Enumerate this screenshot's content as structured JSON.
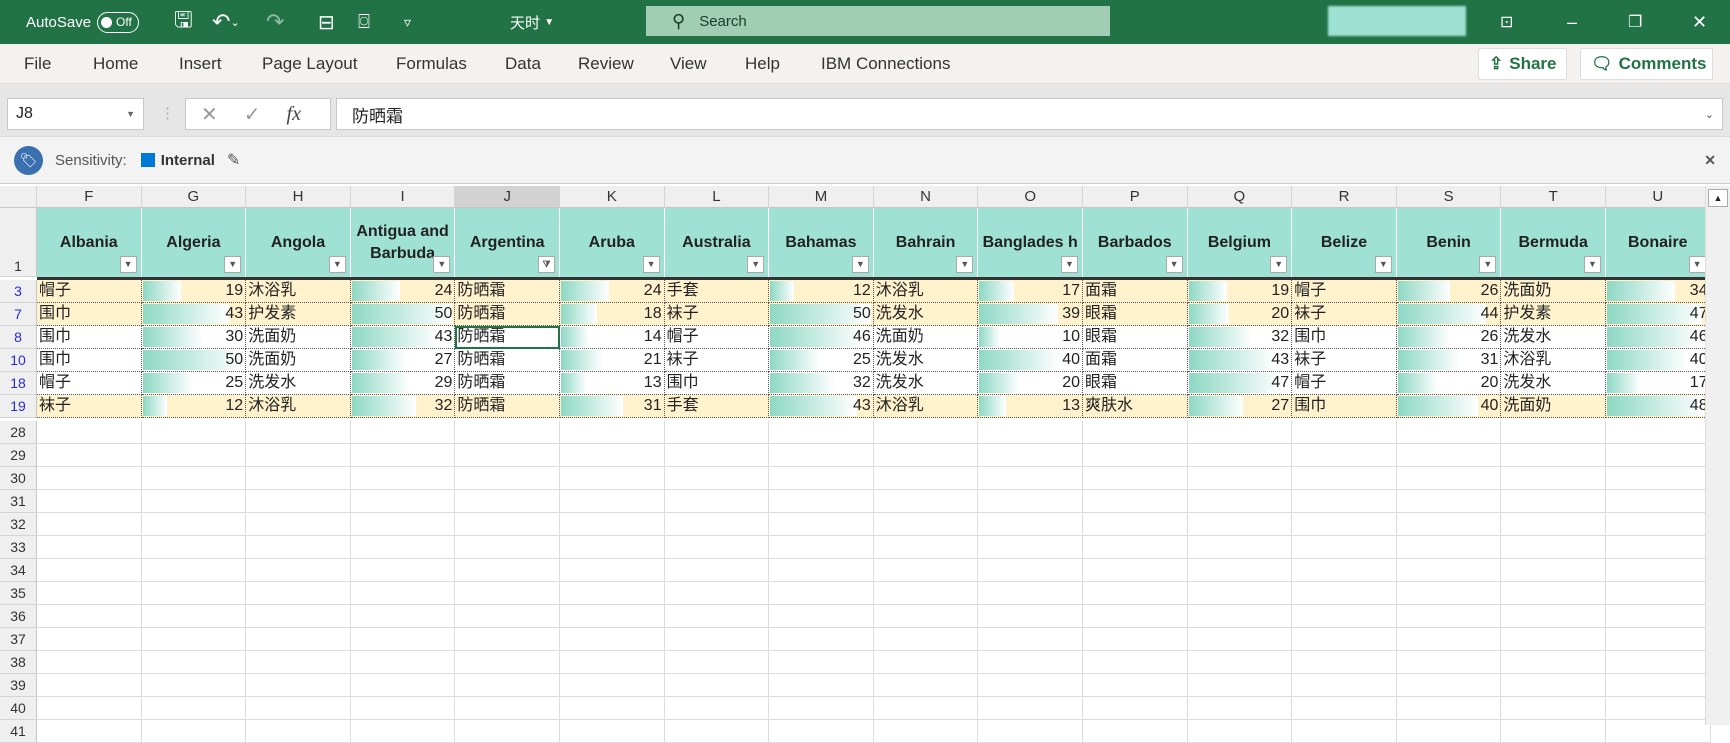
{
  "titlebar": {
    "autosave_label": "AutoSave",
    "autosave_state": "Off",
    "file_name": "天时",
    "search_placeholder": "Search"
  },
  "ribbon": {
    "tabs": [
      "File",
      "Home",
      "Insert",
      "Page Layout",
      "Formulas",
      "Data",
      "Review",
      "View",
      "Help",
      "IBM Connections"
    ],
    "share": "Share",
    "comments": "Comments"
  },
  "formula_bar": {
    "name_box": "J8",
    "fx": "fx",
    "value": "防晒霜"
  },
  "sensitivity": {
    "label": "Sensitivity:",
    "value": "Internal",
    "color": "#0078d4"
  },
  "colors": {
    "header_fill": "#9fe2d4",
    "band_fill": "#fff2cc",
    "databar": "#8ed8c4",
    "accent": "#217346"
  },
  "sheet": {
    "columns": [
      "F",
      "G",
      "H",
      "I",
      "J",
      "K",
      "L",
      "M",
      "N",
      "O",
      "P",
      "Q",
      "R",
      "S",
      "T",
      "U"
    ],
    "headers": [
      "Albania",
      "Algeria",
      "Angola",
      "Antigua and Barbuda",
      "Argentina",
      "Aruba",
      "Australia",
      "Bahamas",
      "Bahrain",
      "Banglades h",
      "Barbados",
      "Belgium",
      "Belize",
      "Benin",
      "Bermuda",
      "Bonaire"
    ],
    "filtered_column": "J",
    "selected_cell": "J8",
    "rows": [
      {
        "num": "3",
        "band": true,
        "cells": [
          "帽子",
          "19",
          "沐浴乳",
          "24",
          "防晒霜",
          "24",
          "手套",
          "12",
          "沐浴乳",
          "17",
          "面霜",
          "19",
          "帽子",
          "26",
          "洗面奶",
          "34"
        ]
      },
      {
        "num": "7",
        "band": true,
        "cells": [
          "围巾",
          "43",
          "护发素",
          "50",
          "防晒霜",
          "18",
          "袜子",
          "50",
          "洗发水",
          "39",
          "眼霜",
          "20",
          "袜子",
          "44",
          "护发素",
          "47"
        ]
      },
      {
        "num": "8",
        "band": false,
        "cells": [
          "围巾",
          "30",
          "洗面奶",
          "43",
          "防晒霜",
          "14",
          "帽子",
          "46",
          "洗面奶",
          "10",
          "眼霜",
          "32",
          "围巾",
          "26",
          "洗发水",
          "46"
        ]
      },
      {
        "num": "10",
        "band": false,
        "cells": [
          "围巾",
          "50",
          "洗面奶",
          "27",
          "防晒霜",
          "21",
          "袜子",
          "25",
          "洗发水",
          "40",
          "面霜",
          "43",
          "袜子",
          "31",
          "沐浴乳",
          "40"
        ]
      },
      {
        "num": "18",
        "band": false,
        "cells": [
          "帽子",
          "25",
          "洗发水",
          "29",
          "防晒霜",
          "13",
          "围巾",
          "32",
          "洗发水",
          "20",
          "眼霜",
          "47",
          "帽子",
          "20",
          "洗发水",
          "17"
        ]
      },
      {
        "num": "19",
        "band": true,
        "cells": [
          "袜子",
          "12",
          "沐浴乳",
          "32",
          "防晒霜",
          "31",
          "手套",
          "43",
          "沐浴乳",
          "13",
          "爽肤水",
          "27",
          "围巾",
          "40",
          "洗面奶",
          "48"
        ]
      }
    ],
    "empty_rows": [
      "28",
      "29",
      "30",
      "31",
      "32",
      "33",
      "34",
      "35",
      "36",
      "37",
      "38",
      "39",
      "40",
      "41"
    ],
    "header_row": "1"
  }
}
